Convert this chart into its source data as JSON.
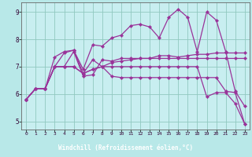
{
  "title": "",
  "xlabel": "Windchill (Refroidissement éolien,°C)",
  "background_color": "#b8e8e8",
  "plot_bg_color": "#c8eef0",
  "grid_color": "#90c8c0",
  "line_color": "#993399",
  "xlabel_bg": "#660066",
  "xlabel_fg": "#ffffff",
  "xlim": [
    -0.5,
    23.5
  ],
  "ylim": [
    4.7,
    9.35
  ],
  "yticks": [
    5,
    6,
    7,
    8,
    9
  ],
  "xticks": [
    0,
    1,
    2,
    3,
    4,
    5,
    6,
    7,
    8,
    9,
    10,
    11,
    12,
    13,
    14,
    15,
    16,
    17,
    18,
    19,
    20,
    21,
    22,
    23
  ],
  "series": [
    [
      5.8,
      6.2,
      6.2,
      7.0,
      7.0,
      7.55,
      6.65,
      6.7,
      7.25,
      7.2,
      7.3,
      7.3,
      7.3,
      7.3,
      7.3,
      7.3,
      7.3,
      7.3,
      7.3,
      7.3,
      7.3,
      7.3,
      7.3,
      7.3
    ],
    [
      5.8,
      6.2,
      6.2,
      7.35,
      7.55,
      7.6,
      6.9,
      7.8,
      7.75,
      8.05,
      8.15,
      8.5,
      8.55,
      8.45,
      8.05,
      8.8,
      9.1,
      8.8,
      7.55,
      9.0,
      8.7,
      7.55,
      6.1,
      5.55
    ],
    [
      5.8,
      6.2,
      6.2,
      7.0,
      7.5,
      7.6,
      6.75,
      7.25,
      7.0,
      6.65,
      6.6,
      6.6,
      6.6,
      6.6,
      6.6,
      6.6,
      6.6,
      6.6,
      6.6,
      6.6,
      6.6,
      6.1,
      6.05,
      4.9
    ],
    [
      5.8,
      6.2,
      6.2,
      7.0,
      7.0,
      7.0,
      6.75,
      6.9,
      7.0,
      7.15,
      7.2,
      7.25,
      7.3,
      7.3,
      7.4,
      7.4,
      7.35,
      7.4,
      7.45,
      7.45,
      7.5,
      7.5,
      7.5,
      7.5
    ],
    [
      5.8,
      6.2,
      6.2,
      7.0,
      7.0,
      7.0,
      6.75,
      6.9,
      7.0,
      7.0,
      7.0,
      7.0,
      7.0,
      7.0,
      7.0,
      7.0,
      7.0,
      7.0,
      7.0,
      5.9,
      6.05,
      6.05,
      5.65,
      4.9
    ]
  ],
  "marker": "D",
  "markersize": 2.2,
  "linewidth": 0.9
}
